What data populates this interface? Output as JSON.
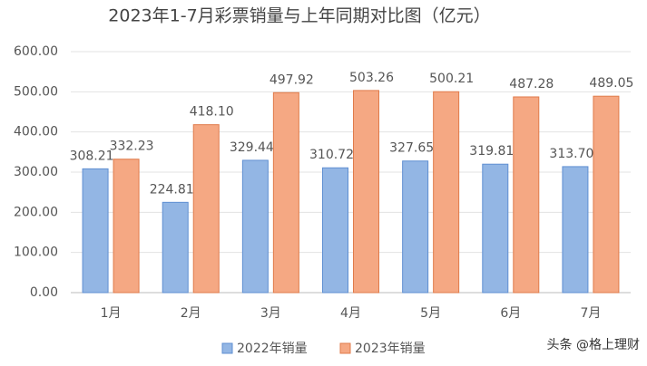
{
  "chart_data": {
    "type": "bar",
    "title": "2023年1-7月彩票销量与上年同期对比图（亿元）",
    "categories": [
      "1月",
      "2月",
      "3月",
      "4月",
      "5月",
      "6月",
      "7月"
    ],
    "series": [
      {
        "name": "2022年销量",
        "color": "#93b6e4",
        "values": [
          308.21,
          224.81,
          329.44,
          310.72,
          327.65,
          319.81,
          313.7
        ],
        "value_labels": [
          "308.21",
          "224.81",
          "329.44",
          "310.72",
          "327.65",
          "319.81",
          "313.70"
        ]
      },
      {
        "name": "2023年销量",
        "color": "#f5a883",
        "values": [
          332.23,
          418.1,
          497.92,
          503.26,
          500.21,
          487.28,
          489.05
        ],
        "value_labels": [
          "332.23",
          "418.10",
          "497.92",
          "503.26",
          "500.21",
          "487.28",
          "489.05"
        ]
      }
    ],
    "ylim": [
      0,
      600
    ],
    "yticks": [
      {
        "value": 0,
        "label": "0.00"
      },
      {
        "value": 100,
        "label": "100.00"
      },
      {
        "value": 200,
        "label": "200.00"
      },
      {
        "value": 300,
        "label": "300.00"
      },
      {
        "value": 400,
        "label": "400.00"
      },
      {
        "value": 500,
        "label": "500.00"
      },
      {
        "value": 600,
        "label": "600.00"
      }
    ],
    "grid": true,
    "legend": "bottom",
    "watermark": "头条 @格上理财"
  }
}
